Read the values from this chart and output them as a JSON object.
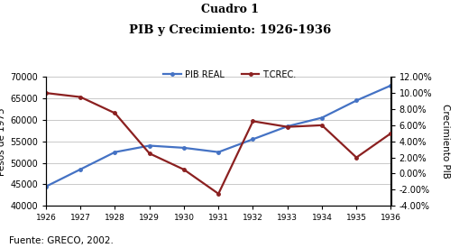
{
  "title_line1": "Cuadro 1",
  "title_line2": "PIB y Crecimiento: 1926-1936",
  "years": [
    1926,
    1927,
    1928,
    1929,
    1930,
    1931,
    1932,
    1933,
    1934,
    1935,
    1936
  ],
  "pib_real": [
    44500,
    48500,
    52500,
    54000,
    53500,
    52500,
    55500,
    58500,
    60500,
    64500,
    68000
  ],
  "t_crec": [
    0.1,
    0.095,
    0.075,
    0.025,
    0.005,
    -0.025,
    0.065,
    0.058,
    0.06,
    0.02,
    0.05
  ],
  "pib_color": "#4472C4",
  "tcrec_color": "#8B2020",
  "ylabel_left": "Pesos de 1975",
  "ylabel_right": "Crecimiento PIB",
  "legend_pib": "PIB REAL",
  "legend_tcrec": "T.CREC.",
  "ylim_left": [
    40000,
    70000
  ],
  "ylim_right": [
    -0.04,
    0.12
  ],
  "yticks_left": [
    40000,
    45000,
    50000,
    55000,
    60000,
    65000,
    70000
  ],
  "yticks_right": [
    -0.04,
    -0.02,
    0.0,
    0.02,
    0.04,
    0.06,
    0.08,
    0.1,
    0.12
  ],
  "source": "Fuente: GRECO, 2002.",
  "bg_color": "#FFFFFF",
  "grid_color": "#C0C0C0"
}
